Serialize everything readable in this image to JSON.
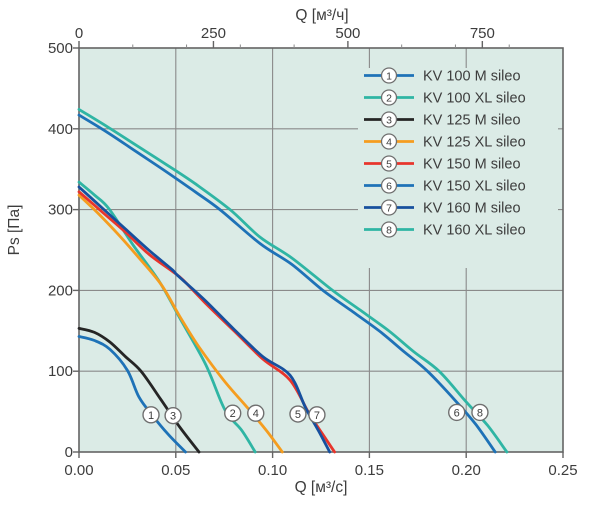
{
  "chart_data": {
    "type": "line",
    "title_top_axis": "Q [м³/ч]",
    "xlabel": "Q [м³/с]",
    "ylabel": "Ps [Па]",
    "x_bottom": {
      "min": 0,
      "max": 0.25,
      "tick_step": 0.05,
      "tick_labels": [
        "0.00",
        "0.05",
        "0.10",
        "0.15",
        "0.20",
        "0.25"
      ]
    },
    "x_top": {
      "unit": "м³/ч",
      "min": 0,
      "max": 900,
      "scale_factor": 3600,
      "major_ticks": [
        0,
        250,
        500,
        750
      ],
      "minor_ticks": [
        100,
        200,
        300,
        400,
        600,
        700,
        800
      ]
    },
    "y": {
      "min": 0,
      "max": 500,
      "ticks": [
        0,
        100,
        200,
        300,
        400,
        500
      ]
    },
    "grid": {
      "x_lines": [
        0.05,
        0.1,
        0.15,
        0.2
      ],
      "y_lines": [
        100,
        200,
        300,
        400
      ]
    },
    "legend_position": "top-right-inside",
    "series": [
      {
        "num": "1",
        "label": "KV 100 M sileo",
        "color": "#1e72b7",
        "points": [
          [
            0,
            143
          ],
          [
            0.008,
            138
          ],
          [
            0.016,
            127
          ],
          [
            0.025,
            101
          ],
          [
            0.031,
            68
          ],
          [
            0.038,
            45
          ],
          [
            0.046,
            22
          ],
          [
            0.055,
            0
          ]
        ],
        "tag_pos": [
          0.0372,
          46
        ]
      },
      {
        "num": "2",
        "label": "KV 100 XL sileo",
        "color": "#2fb5a4",
        "points": [
          [
            0,
            334
          ],
          [
            0.008,
            318
          ],
          [
            0.0155,
            301
          ],
          [
            0.028,
            256
          ],
          [
            0.0415,
            211
          ],
          [
            0.0525,
            164
          ],
          [
            0.0655,
            108
          ],
          [
            0.0754,
            52
          ],
          [
            0.084,
            27
          ],
          [
            0.091,
            0
          ]
        ],
        "tag_pos": [
          0.0794,
          48
        ]
      },
      {
        "num": "3",
        "label": "KV 125 M sileo",
        "color": "#252525",
        "points": [
          [
            0,
            153
          ],
          [
            0.008,
            148
          ],
          [
            0.016,
            136
          ],
          [
            0.024,
            118
          ],
          [
            0.032,
            100
          ],
          [
            0.042,
            66
          ],
          [
            0.052,
            31
          ],
          [
            0.062,
            0
          ]
        ],
        "tag_pos": [
          0.0486,
          45
        ]
      },
      {
        "num": "4",
        "label": "KV 125 XL sileo",
        "color": "#f59d1f",
        "points": [
          [
            0,
            318
          ],
          [
            0.01,
            295
          ],
          [
            0.02,
            270
          ],
          [
            0.03,
            243
          ],
          [
            0.0425,
            207
          ],
          [
            0.052,
            168
          ],
          [
            0.062,
            130
          ],
          [
            0.075,
            88
          ],
          [
            0.088,
            52
          ],
          [
            0.097,
            26
          ],
          [
            0.105,
            0
          ]
        ],
        "tag_pos": [
          0.0913,
          48
        ]
      },
      {
        "num": "5",
        "label": "KV 150 M sileo",
        "color": "#e7352c",
        "points": [
          [
            0,
            322
          ],
          [
            0.012,
            297
          ],
          [
            0.024,
            272
          ],
          [
            0.036,
            245
          ],
          [
            0.048,
            224
          ],
          [
            0.0537,
            213
          ],
          [
            0.065,
            185
          ],
          [
            0.08,
            150
          ],
          [
            0.095,
            115
          ],
          [
            0.109,
            89
          ],
          [
            0.119,
            47
          ],
          [
            0.127,
            18
          ],
          [
            0.132,
            0
          ]
        ],
        "tag_pos": [
          0.1131,
          47
        ]
      },
      {
        "num": "6",
        "label": "KV 150 XL sileo",
        "color": "#1e72b7",
        "points": [
          [
            0,
            417
          ],
          [
            0.015,
            395
          ],
          [
            0.03,
            371
          ],
          [
            0.045,
            347
          ],
          [
            0.06,
            322
          ],
          [
            0.0728,
            300
          ],
          [
            0.0935,
            258
          ],
          [
            0.11,
            232
          ],
          [
            0.126,
            200
          ],
          [
            0.14,
            176
          ],
          [
            0.155,
            150
          ],
          [
            0.168,
            124
          ],
          [
            0.18,
            100
          ],
          [
            0.195,
            62
          ],
          [
            0.205,
            34
          ],
          [
            0.215,
            0
          ]
        ],
        "tag_pos": [
          0.1951,
          49
        ]
      },
      {
        "num": "7",
        "label": "KV 160 M sileo",
        "color": "#17509e",
        "points": [
          [
            0,
            328
          ],
          [
            0.012,
            302
          ],
          [
            0.024,
            276
          ],
          [
            0.036,
            250
          ],
          [
            0.048,
            226
          ],
          [
            0.0512,
            218
          ],
          [
            0.065,
            188
          ],
          [
            0.08,
            152
          ],
          [
            0.095,
            118
          ],
          [
            0.109,
            95
          ],
          [
            0.117,
            55
          ],
          [
            0.124,
            25
          ],
          [
            0.1295,
            0
          ]
        ],
        "tag_pos": [
          0.1229,
          46
        ]
      },
      {
        "num": "8",
        "label": "KV 160 XL sileo",
        "color": "#2fb5a4",
        "points": [
          [
            0,
            424
          ],
          [
            0.015,
            402
          ],
          [
            0.03,
            379
          ],
          [
            0.045,
            356
          ],
          [
            0.06,
            332
          ],
          [
            0.078,
            300
          ],
          [
            0.0935,
            266
          ],
          [
            0.11,
            240
          ],
          [
            0.131,
            200
          ],
          [
            0.145,
            176
          ],
          [
            0.16,
            150
          ],
          [
            0.173,
            124
          ],
          [
            0.186,
            100
          ],
          [
            0.2,
            62
          ],
          [
            0.211,
            33
          ],
          [
            0.221,
            0
          ]
        ],
        "tag_pos": [
          0.2071,
          49
        ]
      }
    ]
  },
  "colors": {
    "plot_bg": "#dbebe6",
    "grid": "#8a8a8a",
    "frame": "#646464",
    "text": "#3d3d3d",
    "tag_circle_border": "#6f6f6f",
    "tag_circle_fill": "#ffffff"
  }
}
